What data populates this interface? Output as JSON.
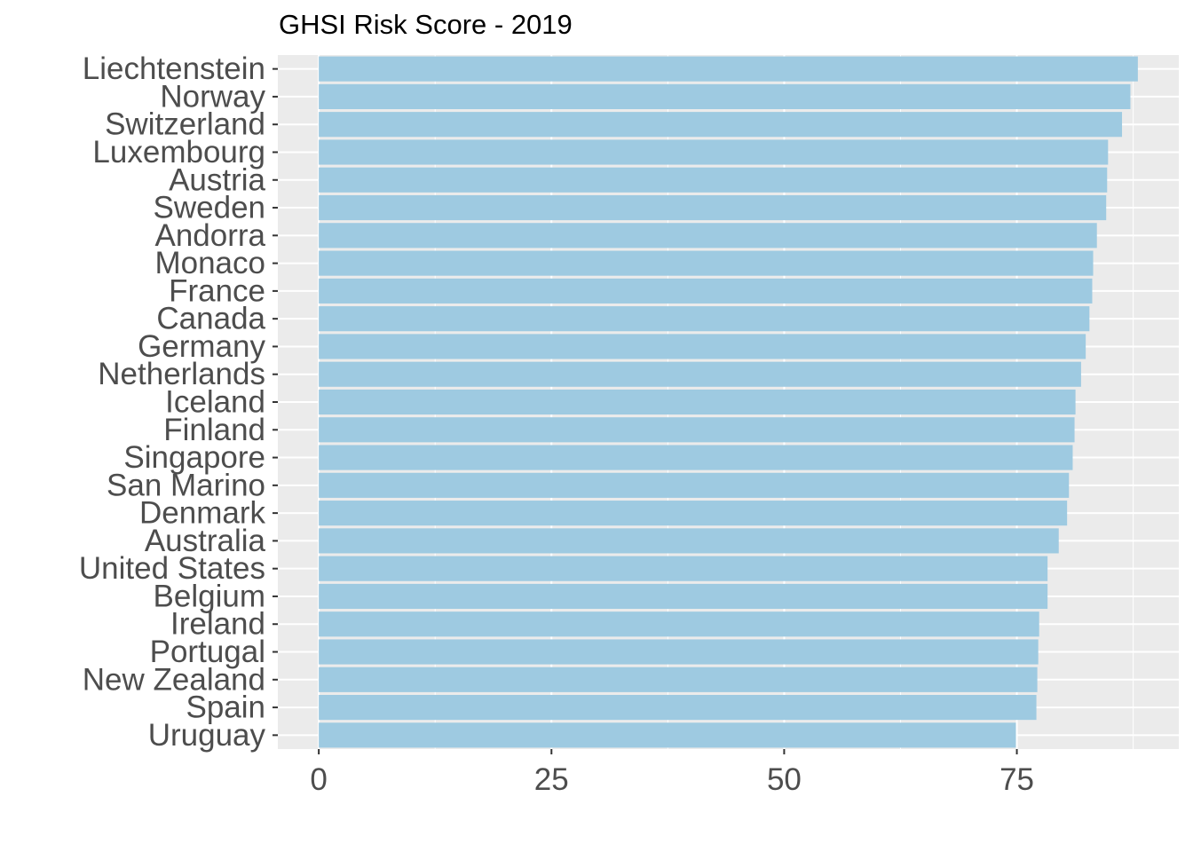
{
  "chart_data": {
    "type": "bar",
    "orientation": "horizontal",
    "title": "GHSI Risk Score - 2019",
    "xlabel": "",
    "ylabel": "",
    "categories": [
      "Liechtenstein",
      "Norway",
      "Switzerland",
      "Luxembourg",
      "Austria",
      "Sweden",
      "Andorra",
      "Monaco",
      "France",
      "Canada",
      "Germany",
      "Netherlands",
      "Iceland",
      "Finland",
      "Singapore",
      "San Marino",
      "Denmark",
      "Australia",
      "United States",
      "Belgium",
      "Ireland",
      "Portugal",
      "New Zealand",
      "Spain",
      "Uruguay"
    ],
    "values": [
      88.0,
      87.2,
      86.3,
      84.8,
      84.7,
      84.6,
      83.6,
      83.2,
      83.1,
      82.8,
      82.4,
      81.9,
      81.3,
      81.2,
      81.0,
      80.6,
      80.4,
      79.5,
      78.3,
      78.3,
      77.4,
      77.3,
      77.2,
      77.1,
      74.9
    ],
    "xlim": [
      -4.4,
      92.4
    ],
    "xticks": [
      0,
      25,
      50,
      75
    ],
    "xtick_labels": [
      "0",
      "25",
      "50",
      "75"
    ],
    "grid": true,
    "legend": "none",
    "colors": {
      "bar": "#9ecae1",
      "panel": "#ebebeb",
      "grid": "#ffffff",
      "text": "#4d4d4d",
      "title": "#000000"
    }
  }
}
